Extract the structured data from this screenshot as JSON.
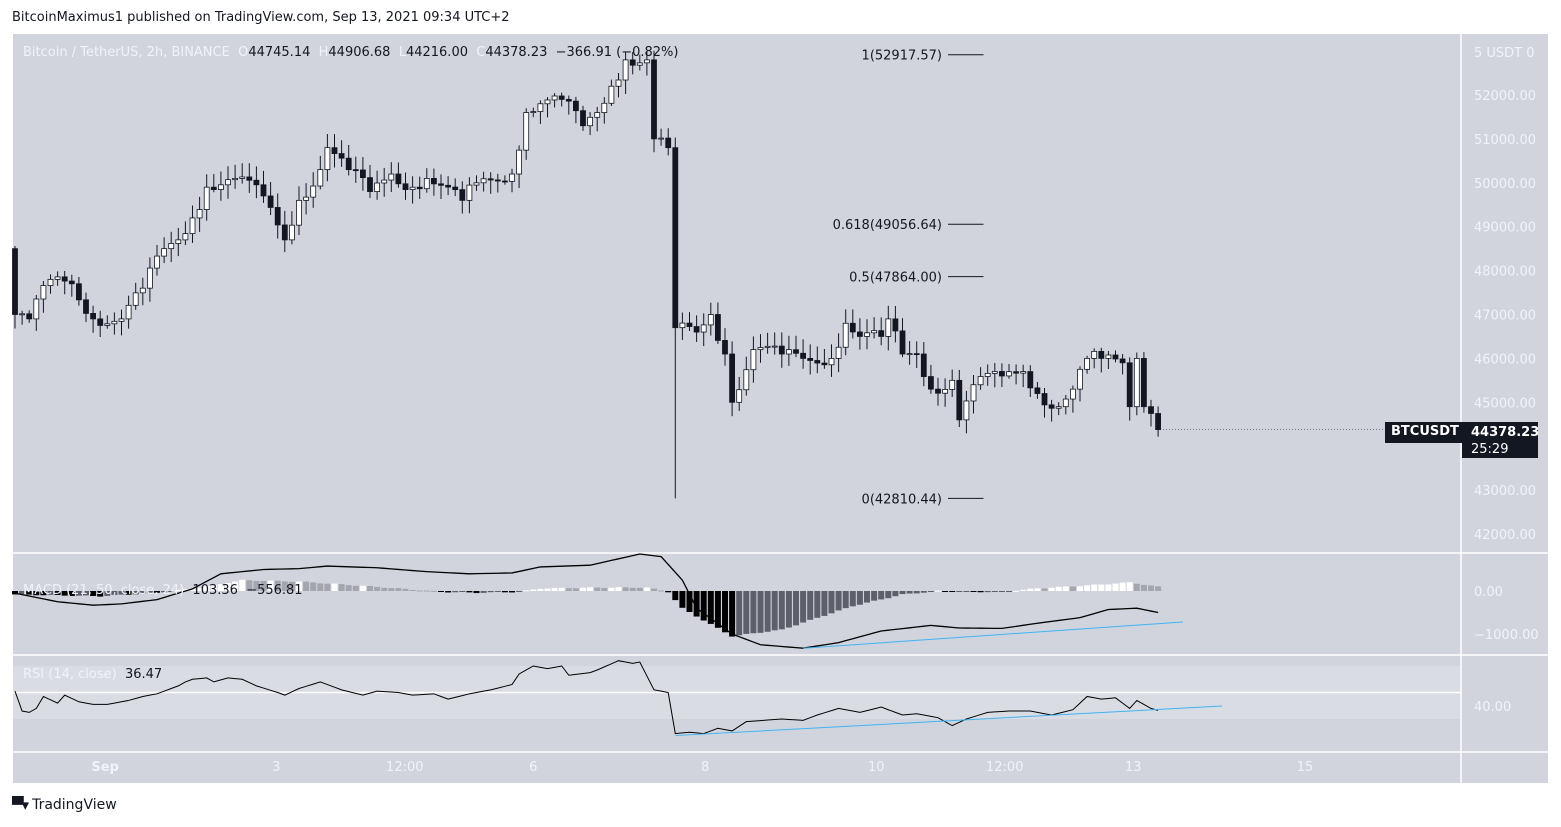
{
  "publisher": "BitcoinMaximus1 published on TradingView.com, Sep 13, 2021 09:34 UTC+2",
  "footer": {
    "brand": "TradingView",
    "logo_text": "TV"
  },
  "colors": {
    "background": "#d1d4dc",
    "axis_text": "#f0f3fa",
    "up": "#ffffff",
    "down": "#131722",
    "trendline": "#3fb4f5",
    "divider": "#ffffff"
  },
  "legend": {
    "symbol": "Bitcoin / TetherUS, 2h, BINANCE",
    "o_label": "O",
    "o": "44745.14",
    "h_label": "H",
    "h": "44906.68",
    "l_label": "L",
    "l": "44216.00",
    "c_label": "C",
    "c": "44378.23",
    "change": "−366.91 (−0.82%)"
  },
  "price_badge": {
    "symbol": "BTCUSDT",
    "price": "44378.23",
    "countdown": "25:29"
  },
  "macd_legend": {
    "title": "MACD (21, 50, close, 24)",
    "v1": "103.36",
    "v2": "−556.81"
  },
  "rsi_legend": {
    "title": "RSI (14, close)",
    "value": "36.47"
  },
  "chart_data": [
    {
      "type": "candlestick",
      "title": "Bitcoin / TetherUS, 2h, BINANCE",
      "x_unit": "bar index (2h bars)",
      "y_axis_header": "5 USDT 0",
      "yticks": [
        52000,
        51000,
        50000,
        49000,
        48000,
        47000,
        46000,
        45000,
        44000,
        43000,
        42000
      ],
      "ytick_labels": [
        "52000.00",
        "51000.00",
        "50000.00",
        "49000.00",
        "48000.00",
        "47000.00",
        "46000.00",
        "45000.00",
        "44000.00",
        "43000.00",
        "42000.00"
      ],
      "first_open": 48500,
      "close_keypoints": [
        [
          0,
          47000
        ],
        [
          2,
          46900
        ],
        [
          5,
          47800
        ],
        [
          8,
          47700
        ],
        [
          11,
          46900
        ],
        [
          15,
          46900
        ],
        [
          18,
          47600
        ],
        [
          21,
          48500
        ],
        [
          23,
          48700
        ],
        [
          25,
          49200
        ],
        [
          27,
          49900
        ],
        [
          31,
          50100
        ],
        [
          35,
          49700
        ],
        [
          38,
          48700
        ],
        [
          40,
          49600
        ],
        [
          43,
          50300
        ],
        [
          44,
          50800
        ],
        [
          47,
          50300
        ],
        [
          50,
          49800
        ],
        [
          53,
          50200
        ],
        [
          56,
          49900
        ],
        [
          58,
          50100
        ],
        [
          63,
          49600
        ],
        [
          65,
          50000
        ],
        [
          70,
          50200
        ],
        [
          72,
          51600
        ],
        [
          74,
          51800
        ],
        [
          77,
          51900
        ],
        [
          80,
          51300
        ],
        [
          82,
          51600
        ],
        [
          84,
          52200
        ],
        [
          86,
          52800
        ],
        [
          89,
          52800
        ],
        [
          90,
          51000
        ],
        [
          92,
          50800
        ],
        [
          93,
          46700
        ],
        [
          96,
          46600
        ],
        [
          98,
          47000
        ],
        [
          100,
          46100
        ],
        [
          101,
          45000
        ],
        [
          104,
          46200
        ],
        [
          108,
          46100
        ],
        [
          111,
          46000
        ],
        [
          115,
          46000
        ],
        [
          117,
          46800
        ],
        [
          119,
          46500
        ],
        [
          122,
          46500
        ],
        [
          123,
          46900
        ],
        [
          125,
          46100
        ],
        [
          127,
          46100
        ],
        [
          129,
          45300
        ],
        [
          132,
          45500
        ],
        [
          133,
          44600
        ],
        [
          135,
          45400
        ],
        [
          139,
          45600
        ],
        [
          142,
          45700
        ],
        [
          144,
          45200
        ],
        [
          147,
          44900
        ],
        [
          149,
          45300
        ],
        [
          151,
          46000
        ],
        [
          153,
          46000
        ],
        [
          156,
          45900
        ],
        [
          157,
          44900
        ],
        [
          158,
          46000
        ],
        [
          159,
          44900
        ],
        [
          160,
          44745.14
        ],
        [
          161,
          44378.23
        ]
      ],
      "extreme_wicks": [
        [
          93,
          42810.44
        ]
      ],
      "last_candle": {
        "open": 44745.14,
        "high": 44906.68,
        "low": 44216.0,
        "close": 44378.23
      },
      "fib_levels": [
        {
          "label": "1(52917.57)",
          "price": 52917.57
        },
        {
          "label": "0.618(49056.64)",
          "price": 49056.64
        },
        {
          "label": "0.5(47864.00)",
          "price": 47864.0
        },
        {
          "label": "0(42810.44)",
          "price": 42810.44
        }
      ],
      "fib_bars": [
        130,
        135
      ],
      "time_labels": [
        {
          "label": "Sep",
          "bar": 12.7
        },
        {
          "label": "3",
          "bar": 36.8
        },
        {
          "label": "12:00",
          "bar": 54.9
        },
        {
          "label": "6",
          "bar": 73
        },
        {
          "label": "8",
          "bar": 97.2
        },
        {
          "label": "10",
          "bar": 121.3
        },
        {
          "label": "12:00",
          "bar": 139.4
        },
        {
          "label": "13",
          "bar": 157.5
        },
        {
          "label": "15",
          "bar": 181.7
        }
      ]
    },
    {
      "type": "line",
      "title": "MACD (21, 50, close, 24)",
      "yticks": [
        0,
        -1000
      ],
      "ytick_labels": [
        "0.00",
        "−1000.00"
      ],
      "macd_keypoints": [
        [
          0,
          -50
        ],
        [
          6,
          -250
        ],
        [
          11,
          -330
        ],
        [
          15,
          -300
        ],
        [
          20,
          -200
        ],
        [
          25,
          50
        ],
        [
          29,
          400
        ],
        [
          35,
          500
        ],
        [
          40,
          520
        ],
        [
          44,
          580
        ],
        [
          51,
          540
        ],
        [
          58,
          450
        ],
        [
          64,
          400
        ],
        [
          70,
          420
        ],
        [
          74,
          560
        ],
        [
          81,
          600
        ],
        [
          88,
          860
        ],
        [
          91,
          800
        ],
        [
          94,
          250
        ],
        [
          96,
          -400
        ],
        [
          101,
          -1000
        ],
        [
          105,
          -1250
        ],
        [
          111,
          -1330
        ],
        [
          116,
          -1200
        ],
        [
          122,
          -930
        ],
        [
          129,
          -800
        ],
        [
          133,
          -860
        ],
        [
          139,
          -870
        ],
        [
          144,
          -750
        ],
        [
          150,
          -620
        ],
        [
          154,
          -430
        ],
        [
          158,
          -400
        ],
        [
          161,
          -500
        ]
      ],
      "histogram_keypoints": [
        [
          0,
          -80
        ],
        [
          12,
          -120
        ],
        [
          20,
          -40
        ],
        [
          26,
          80
        ],
        [
          32,
          250
        ],
        [
          40,
          220
        ],
        [
          49,
          120
        ],
        [
          57,
          20
        ],
        [
          60,
          -20
        ],
        [
          65,
          -40
        ],
        [
          71,
          -20
        ],
        [
          74,
          60
        ],
        [
          82,
          80
        ],
        [
          89,
          80
        ],
        [
          92,
          -20
        ],
        [
          94,
          -400
        ],
        [
          101,
          -1050
        ],
        [
          108,
          -900
        ],
        [
          118,
          -350
        ],
        [
          125,
          -80
        ],
        [
          130,
          0
        ],
        [
          133,
          -20
        ],
        [
          139,
          -20
        ],
        [
          144,
          60
        ],
        [
          153,
          150
        ],
        [
          157,
          200
        ],
        [
          161,
          100
        ]
      ],
      "trendline": [
        [
          111,
          -1330
        ],
        [
          164.5,
          -720
        ]
      ]
    },
    {
      "type": "line",
      "title": "RSI (14, close)",
      "yticks": [
        40
      ],
      "ytick_labels": [
        "40.00"
      ],
      "bands": [
        30,
        70
      ],
      "midline": 50,
      "rsi_keypoints": [
        [
          0,
          51
        ],
        [
          1,
          36
        ],
        [
          2,
          35
        ],
        [
          3,
          38
        ],
        [
          4,
          47
        ],
        [
          6,
          42
        ],
        [
          7,
          48
        ],
        [
          9,
          43
        ],
        [
          11,
          41
        ],
        [
          13,
          41
        ],
        [
          16,
          44
        ],
        [
          18,
          47
        ],
        [
          20,
          49
        ],
        [
          23,
          55
        ],
        [
          24,
          58
        ],
        [
          25,
          60
        ],
        [
          27,
          61
        ],
        [
          28,
          58
        ],
        [
          30,
          61
        ],
        [
          32,
          60
        ],
        [
          34,
          55
        ],
        [
          37,
          50
        ],
        [
          38,
          48
        ],
        [
          40,
          53
        ],
        [
          43,
          58
        ],
        [
          44,
          56
        ],
        [
          46,
          52
        ],
        [
          49,
          48
        ],
        [
          51,
          51
        ],
        [
          54,
          50
        ],
        [
          56,
          48
        ],
        [
          59,
          49
        ],
        [
          61,
          45
        ],
        [
          64,
          49
        ],
        [
          67,
          52
        ],
        [
          70,
          56
        ],
        [
          71,
          64
        ],
        [
          73,
          70
        ],
        [
          75,
          68
        ],
        [
          77,
          70
        ],
        [
          78,
          63
        ],
        [
          81,
          65
        ],
        [
          82,
          67
        ],
        [
          85,
          74
        ],
        [
          87,
          72
        ],
        [
          88,
          73
        ],
        [
          90,
          52
        ],
        [
          92,
          50
        ],
        [
          93,
          19
        ],
        [
          95,
          20
        ],
        [
          97,
          19
        ],
        [
          99,
          23
        ],
        [
          101,
          21
        ],
        [
          103,
          28
        ],
        [
          108,
          30
        ],
        [
          111,
          29
        ],
        [
          113,
          33
        ],
        [
          116,
          38
        ],
        [
          119,
          35
        ],
        [
          122,
          39
        ],
        [
          125,
          33
        ],
        [
          127,
          34
        ],
        [
          130,
          31
        ],
        [
          132,
          25
        ],
        [
          134,
          30
        ],
        [
          137,
          35
        ],
        [
          140,
          36
        ],
        [
          143,
          36
        ],
        [
          146,
          33
        ],
        [
          149,
          37
        ],
        [
          151,
          47
        ],
        [
          153,
          45
        ],
        [
          155,
          46
        ],
        [
          157,
          38
        ],
        [
          158,
          44
        ],
        [
          160,
          38
        ],
        [
          161,
          36.47
        ]
      ],
      "trendline": [
        [
          93,
          17.5
        ],
        [
          170,
          39.8
        ]
      ]
    }
  ]
}
